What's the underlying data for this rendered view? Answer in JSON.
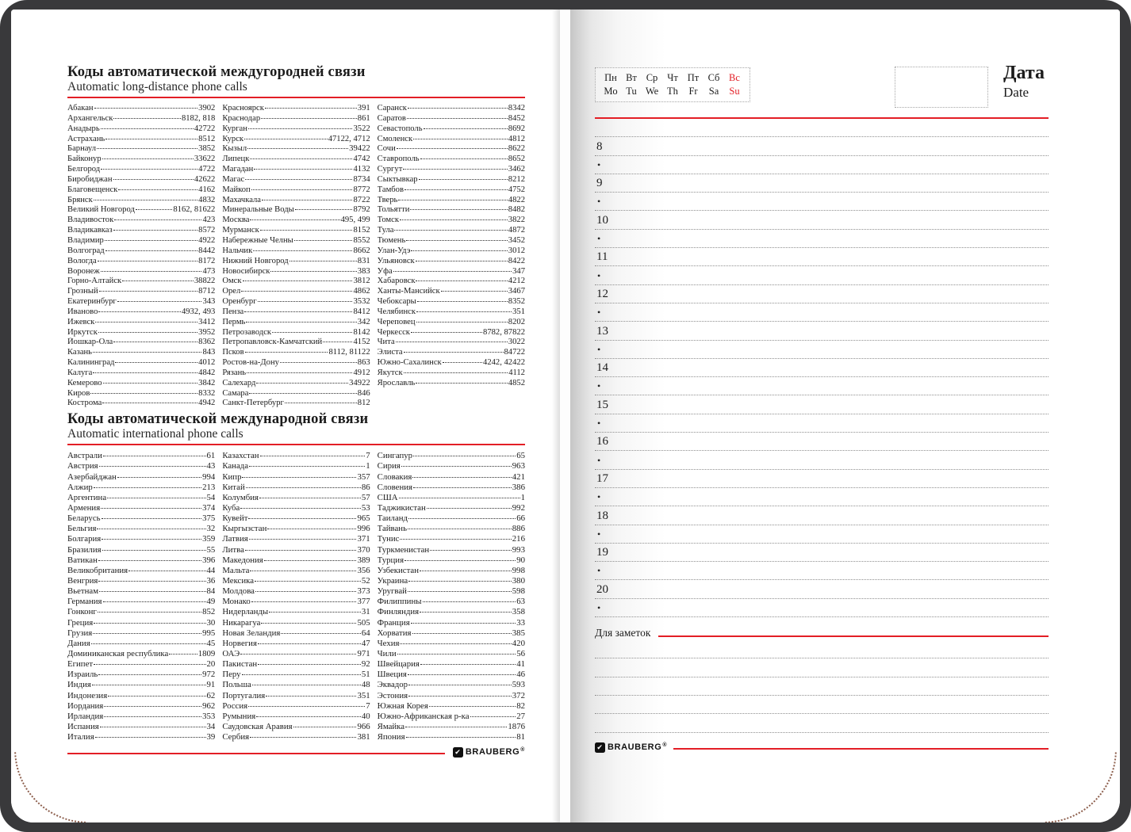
{
  "colors": {
    "accent_red": "#e31e25",
    "cover": "#39393b",
    "stitch": "#8d5f4d"
  },
  "brand": {
    "name": "BRAUBERG",
    "registered": "®",
    "check_icon": "✔"
  },
  "left_page": {
    "section1": {
      "title_ru": "Коды автоматической междугородней связи",
      "title_en": "Automatic long-distance phone calls",
      "columns": [
        [
          [
            "Абакан",
            "3902"
          ],
          [
            "Архангельск",
            "8182, 818"
          ],
          [
            "Анадырь",
            "42722"
          ],
          [
            "Астрахань",
            "8512"
          ],
          [
            "Барнаул",
            "3852"
          ],
          [
            "Байконур",
            "33622"
          ],
          [
            "Белгород",
            "4722"
          ],
          [
            "Биробиджан",
            "42622"
          ],
          [
            "Благовещенск",
            "4162"
          ],
          [
            "Брянск",
            "4832"
          ],
          [
            "Великий Новгород",
            "8162, 81622"
          ],
          [
            "Владивосток",
            "423"
          ],
          [
            "Владикавказ",
            "8572"
          ],
          [
            "Владимир",
            "4922"
          ],
          [
            "Волгоград",
            "8442"
          ],
          [
            "Вологда",
            "8172"
          ],
          [
            "Воронеж",
            "473"
          ],
          [
            "Горно-Алтайск",
            "38822"
          ],
          [
            "Грозный",
            "8712"
          ],
          [
            "Екатеринбург",
            "343"
          ],
          [
            "Иваново",
            "4932, 493"
          ],
          [
            "Ижевск",
            "3412"
          ],
          [
            "Иркутск",
            "3952"
          ],
          [
            "Йошкар-Ола",
            "8362"
          ],
          [
            "Казань",
            "843"
          ],
          [
            "Калининград",
            "4012"
          ],
          [
            "Калуга",
            "4842"
          ],
          [
            "Кемерово",
            "3842"
          ],
          [
            "Киров",
            "8332"
          ],
          [
            "Кострома",
            "4942"
          ]
        ],
        [
          [
            "Красноярск",
            "391"
          ],
          [
            "Краснодар",
            "861"
          ],
          [
            "Курган",
            "3522"
          ],
          [
            "Курск",
            "47122, 4712"
          ],
          [
            "Кызыл",
            "39422"
          ],
          [
            "Липецк",
            "4742"
          ],
          [
            "Магадан",
            "4132"
          ],
          [
            "Магас",
            "8734"
          ],
          [
            "Майкоп",
            "8772"
          ],
          [
            "Махачкала",
            "8722"
          ],
          [
            "Минеральные Воды",
            "8792"
          ],
          [
            "Москва",
            "495, 499"
          ],
          [
            "Мурманск",
            "8152"
          ],
          [
            "Набережные Челны",
            "8552"
          ],
          [
            "Нальчик",
            "8662"
          ],
          [
            "Нижний Новгород",
            "831"
          ],
          [
            "Новосибирск",
            "383"
          ],
          [
            "Омск",
            "3812"
          ],
          [
            "Орел",
            "4862"
          ],
          [
            "Оренбург",
            "3532"
          ],
          [
            "Пенза",
            "8412"
          ],
          [
            "Пермь",
            "342"
          ],
          [
            "Петрозаводск",
            "8142"
          ],
          [
            "Петропавловск-Камчатский",
            "4152"
          ],
          [
            "Псков",
            "8112, 81122"
          ],
          [
            "Ростов-на-Дону",
            "863"
          ],
          [
            "Рязань",
            "4912"
          ],
          [
            "Салехард",
            "34922"
          ],
          [
            "Самара",
            "846"
          ],
          [
            "Санкт-Петербург",
            "812"
          ]
        ],
        [
          [
            "Саранск",
            "8342"
          ],
          [
            "Саратов",
            "8452"
          ],
          [
            "Севастополь",
            "8692"
          ],
          [
            "Смоленск",
            "4812"
          ],
          [
            "Сочи",
            "8622"
          ],
          [
            "Ставрополь",
            "8652"
          ],
          [
            "Сургут",
            "3462"
          ],
          [
            "Сыктывкар",
            "8212"
          ],
          [
            "Тамбов",
            "4752"
          ],
          [
            "Тверь",
            "4822"
          ],
          [
            "Тольятти",
            "8482"
          ],
          [
            "Томск",
            "3822"
          ],
          [
            "Тула",
            "4872"
          ],
          [
            "Тюмень",
            "3452"
          ],
          [
            "Улан-Удэ",
            "3012"
          ],
          [
            "Ульяновск",
            "8422"
          ],
          [
            "Уфа",
            "347"
          ],
          [
            "Хабаровск",
            "4212"
          ],
          [
            "Ханты-Мансийск",
            "3467"
          ],
          [
            "Чебоксары",
            "8352"
          ],
          [
            "Челябинск",
            "351"
          ],
          [
            "Череповец",
            "8202"
          ],
          [
            "Черкесск",
            "8782, 87822"
          ],
          [
            "Чита",
            "3022"
          ],
          [
            "Элиста",
            "84722"
          ],
          [
            "Южно-Сахалинск",
            "4242, 42422"
          ],
          [
            "Якутск",
            "4112"
          ],
          [
            "Ярославль",
            "4852"
          ]
        ]
      ]
    },
    "section2": {
      "title_ru": "Коды автоматической международной связи",
      "title_en": "Automatic international phone calls",
      "columns": [
        [
          [
            "Австрали",
            "61"
          ],
          [
            "Австрия",
            "43"
          ],
          [
            "Азербайджан",
            "994"
          ],
          [
            "Алжир",
            "213"
          ],
          [
            "Аргентина",
            "54"
          ],
          [
            "Армения",
            "374"
          ],
          [
            "Беларусь",
            "375"
          ],
          [
            "Бельгия",
            "32"
          ],
          [
            "Болгария",
            "359"
          ],
          [
            "Бразилия",
            "55"
          ],
          [
            "Ватикан",
            "396"
          ],
          [
            "Великобритания",
            "44"
          ],
          [
            "Венгрия",
            "36"
          ],
          [
            "Вьетнам",
            "84"
          ],
          [
            "Германия",
            "49"
          ],
          [
            "Гонконг",
            "852"
          ],
          [
            "Греция",
            "30"
          ],
          [
            "Грузия",
            "995"
          ],
          [
            "Дания",
            "45"
          ],
          [
            "Доминиканская республика",
            "1809"
          ],
          [
            "Египет",
            "20"
          ],
          [
            "Израиль",
            "972"
          ],
          [
            "Индия",
            "91"
          ],
          [
            "Индонезия",
            "62"
          ],
          [
            "Иордания",
            "962"
          ],
          [
            "Ирландия",
            "353"
          ],
          [
            "Испания",
            "34"
          ],
          [
            "Италия",
            "39"
          ]
        ],
        [
          [
            "Казахстан",
            "7"
          ],
          [
            "Канада",
            "1"
          ],
          [
            "Кипр",
            "357"
          ],
          [
            "Китай",
            "86"
          ],
          [
            "Колумбия",
            "57"
          ],
          [
            "Куба",
            "53"
          ],
          [
            "Кувейт",
            "965"
          ],
          [
            "Кыргызстан",
            "996"
          ],
          [
            "Латвия",
            "371"
          ],
          [
            "Литва",
            "370"
          ],
          [
            "Македония",
            "389"
          ],
          [
            "Мальта",
            "356"
          ],
          [
            "Мексика",
            "52"
          ],
          [
            "Молдова",
            "373"
          ],
          [
            "Монако",
            "377"
          ],
          [
            "Нидерланды",
            "31"
          ],
          [
            "Никарагуа",
            "505"
          ],
          [
            "Новая Зеландия",
            "64"
          ],
          [
            "Норвегия",
            "47"
          ],
          [
            "ОАЭ",
            "971"
          ],
          [
            "Пакистан",
            "92"
          ],
          [
            "Перу",
            "51"
          ],
          [
            "Польша",
            "48"
          ],
          [
            "Португалия",
            "351"
          ],
          [
            "Россия",
            "7"
          ],
          [
            "Румыния",
            "40"
          ],
          [
            "Саудовская Аравия",
            "966"
          ],
          [
            "Сербия",
            "381"
          ]
        ],
        [
          [
            "Сингапур",
            "65"
          ],
          [
            "Сирия",
            "963"
          ],
          [
            "Словакия",
            "421"
          ],
          [
            "Словения",
            "386"
          ],
          [
            "США",
            "1"
          ],
          [
            "Таджикистан",
            "992"
          ],
          [
            "Таиланд",
            "66"
          ],
          [
            "Тайвань",
            "886"
          ],
          [
            "Тунис",
            "216"
          ],
          [
            "Туркменистан",
            "993"
          ],
          [
            "Турция",
            "90"
          ],
          [
            "Узбекистан",
            "998"
          ],
          [
            "Украина",
            "380"
          ],
          [
            "Уругвай",
            "598"
          ],
          [
            "Филиппины",
            "63"
          ],
          [
            "Финляндия",
            "358"
          ],
          [
            "Франция",
            "33"
          ],
          [
            "Хорватия",
            "385"
          ],
          [
            "Чехия",
            "420"
          ],
          [
            "Чили",
            "56"
          ],
          [
            "Швейцария",
            "41"
          ],
          [
            "Швеция",
            "46"
          ],
          [
            "Эквадор",
            "593"
          ],
          [
            "Эстония",
            "372"
          ],
          [
            "Южная Корея",
            "82"
          ],
          [
            "Южно-Африканская р-ка",
            "27"
          ],
          [
            "Ямайка",
            "1876"
          ],
          [
            "Япония",
            "81"
          ]
        ]
      ]
    }
  },
  "right_page": {
    "weekdays_ru": [
      "Пн",
      "Вт",
      "Ср",
      "Чт",
      "Пт",
      "Сб",
      "Вс"
    ],
    "weekdays_en": [
      "Mo",
      "Tu",
      "We",
      "Th",
      "Fr",
      "Sa",
      "Su"
    ],
    "red_day_index": 6,
    "date_label_ru": "Дата",
    "date_label_en": "Date",
    "hours": [
      "8",
      "9",
      "10",
      "11",
      "12",
      "13",
      "14",
      "15",
      "16",
      "17",
      "18",
      "19",
      "20"
    ],
    "bullet": "•",
    "notes_label": "Для заметок",
    "notes_lines": 5
  }
}
